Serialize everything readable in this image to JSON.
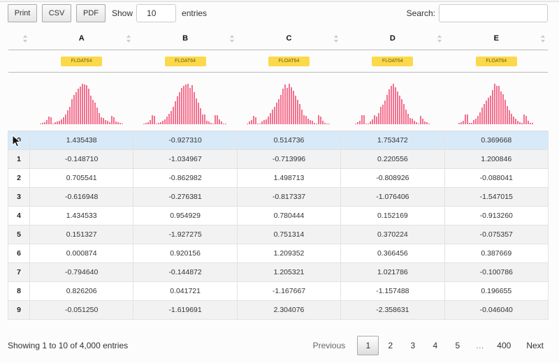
{
  "toolbar": {
    "buttons": [
      {
        "label": "Print"
      },
      {
        "label": "CSV"
      },
      {
        "label": "PDF"
      }
    ],
    "length": {
      "show_label": "Show",
      "value": "10",
      "entries_label": "entries"
    }
  },
  "search": {
    "label": "Search:",
    "value": ""
  },
  "table": {
    "columns": [
      {
        "label": "",
        "dtype": ""
      },
      {
        "label": "A",
        "dtype": "FLOAT64"
      },
      {
        "label": "B",
        "dtype": "FLOAT64"
      },
      {
        "label": "C",
        "dtype": "FLOAT64"
      },
      {
        "label": "D",
        "dtype": "FLOAT64"
      },
      {
        "label": "E",
        "dtype": "FLOAT64"
      }
    ],
    "histogram_color": "#f4708e",
    "histograms": [
      [
        1,
        2,
        3,
        6,
        11,
        10,
        0,
        3,
        4,
        5,
        7,
        10,
        14,
        20,
        25,
        35,
        41,
        45,
        50,
        53,
        57,
        56,
        55,
        50,
        40,
        34,
        30,
        24,
        16,
        10,
        9,
        6,
        5,
        3,
        12,
        10,
        4,
        3,
        2,
        1
      ],
      [
        1,
        2,
        3,
        6,
        12,
        11,
        0,
        2,
        3,
        5,
        7,
        10,
        14,
        18,
        24,
        31,
        38,
        44,
        49,
        52,
        54,
        55,
        49,
        53,
        44,
        35,
        29,
        22,
        13,
        13,
        5,
        4,
        2,
        1,
        12,
        12,
        7,
        4,
        1,
        1
      ],
      [
        1,
        3,
        5,
        10,
        8,
        0,
        1,
        3,
        5,
        6,
        9,
        13,
        17,
        21,
        26,
        30,
        35,
        42,
        47,
        43,
        48,
        44,
        40,
        34,
        29,
        24,
        17,
        11,
        10,
        7,
        5,
        4,
        2,
        1,
        11,
        9,
        4,
        2,
        1,
        1
      ],
      [
        1,
        2,
        4,
        10,
        10,
        0,
        1,
        3,
        5,
        10,
        8,
        12,
        19,
        21,
        26,
        32,
        38,
        42,
        44,
        40,
        36,
        31,
        27,
        22,
        16,
        11,
        7,
        6,
        4,
        2,
        1,
        9,
        6,
        3,
        2,
        1
      ],
      [
        1,
        2,
        3,
        9,
        9,
        1,
        1,
        4,
        5,
        8,
        11,
        16,
        19,
        22,
        25,
        27,
        32,
        38,
        36,
        36,
        31,
        28,
        23,
        17,
        13,
        10,
        7,
        5,
        3,
        2,
        1,
        9,
        8,
        3,
        1,
        1
      ]
    ],
    "rows": [
      {
        "idx": "0",
        "values": [
          "1.435438",
          "-0.927310",
          "0.514736",
          "1.753472",
          "0.369668"
        ],
        "selected": true
      },
      {
        "idx": "1",
        "values": [
          "-0.148710",
          "-1.034967",
          "-0.713996",
          "0.220556",
          "1.200846"
        ]
      },
      {
        "idx": "2",
        "values": [
          "0.705541",
          "-0.862982",
          "1.498713",
          "-0.808926",
          "-0.088041"
        ]
      },
      {
        "idx": "3",
        "values": [
          "-0.616948",
          "-0.276381",
          "-0.817337",
          "-1.076406",
          "-1.547015"
        ]
      },
      {
        "idx": "4",
        "values": [
          "1.434533",
          "0.954929",
          "0.780444",
          "0.152169",
          "-0.913260"
        ]
      },
      {
        "idx": "5",
        "values": [
          "0.151327",
          "-1.927275",
          "0.751314",
          "0.370224",
          "-0.075357"
        ]
      },
      {
        "idx": "6",
        "values": [
          "0.000874",
          "0.920156",
          "1.209352",
          "0.366456",
          "0.387669"
        ]
      },
      {
        "idx": "7",
        "values": [
          "-0.794640",
          "-0.144872",
          "1.205321",
          "1.021786",
          "-0.100786"
        ]
      },
      {
        "idx": "8",
        "values": [
          "0.826206",
          "0.041721",
          "-1.167667",
          "-1.157488",
          "0.196655"
        ]
      },
      {
        "idx": "9",
        "values": [
          "-0.051250",
          "-1.619691",
          "2.304076",
          "-2.358631",
          "-0.046040"
        ]
      }
    ]
  },
  "footer": {
    "info": "Showing 1 to 10 of 4,000 entries",
    "pagination": {
      "previous": "Previous",
      "pages": [
        "1",
        "2",
        "3",
        "4",
        "5"
      ],
      "current": "1",
      "ellipsis": "…",
      "last": "400",
      "next": "Next"
    }
  }
}
